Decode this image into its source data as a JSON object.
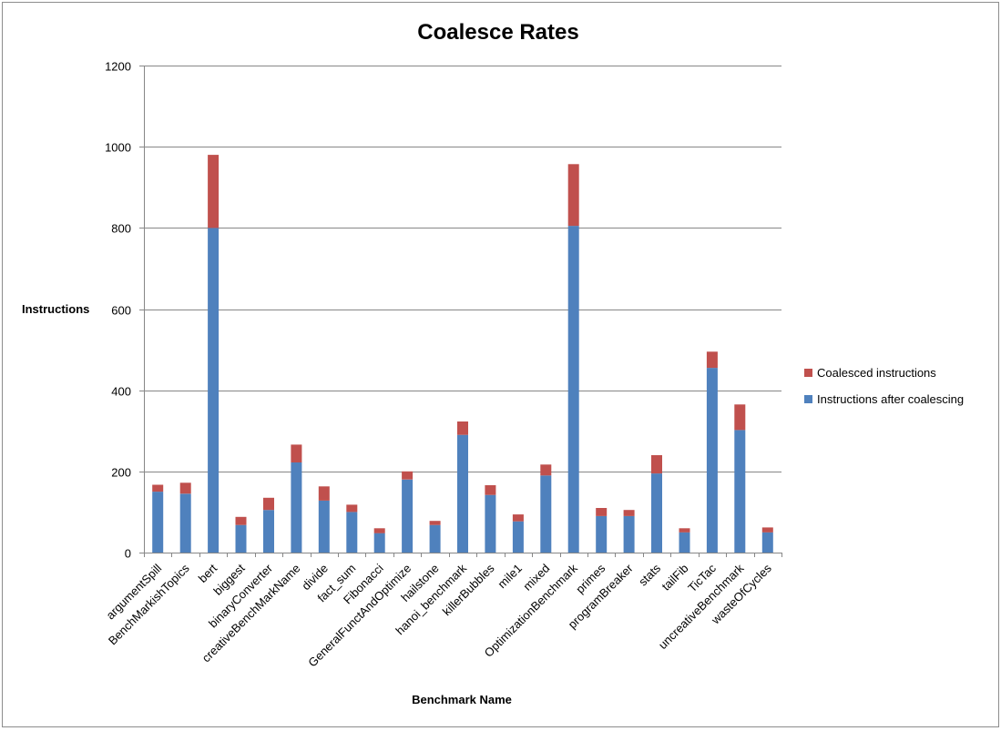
{
  "chart_data": {
    "type": "bar",
    "stacked": true,
    "title": "Coalesce Rates",
    "xlabel": "Benchmark Name",
    "ylabel": "Instructions",
    "ylim": [
      0,
      1200
    ],
    "yticks": [
      0,
      200,
      400,
      600,
      800,
      1000,
      1200
    ],
    "grid": true,
    "legend_position": "right",
    "categories": [
      "argumentSpill",
      "BenchMarkishTopics",
      "bert",
      "biggest",
      "binaryConverter",
      "creativeBenchMarkName",
      "divide",
      "fact_sum",
      "Fibonacci",
      "GeneralFunctAndOptimize",
      "hailstone",
      "hanoi_benchmark",
      "killerBubbles",
      "mile1",
      "mixed",
      "OptimizationBenchmark",
      "primes",
      "programBreaker",
      "stats",
      "tailFib",
      "TicTac",
      "uncreativeBenchmark",
      "wasteOfCycles"
    ],
    "series": [
      {
        "name": "Instructions after coalescing",
        "color": "#4f81bd",
        "values": [
          150,
          145,
          800,
          68,
          105,
          222,
          128,
          100,
          48,
          180,
          68,
          290,
          142,
          77,
          190,
          805,
          90,
          90,
          195,
          50,
          455,
          302,
          50
        ]
      },
      {
        "name": "Coalesced instructions",
        "color": "#c0504d",
        "values": [
          17,
          27,
          180,
          20,
          30,
          44,
          35,
          18,
          12,
          20,
          10,
          33,
          24,
          17,
          27,
          152,
          20,
          15,
          45,
          10,
          40,
          63,
          12
        ]
      }
    ]
  }
}
